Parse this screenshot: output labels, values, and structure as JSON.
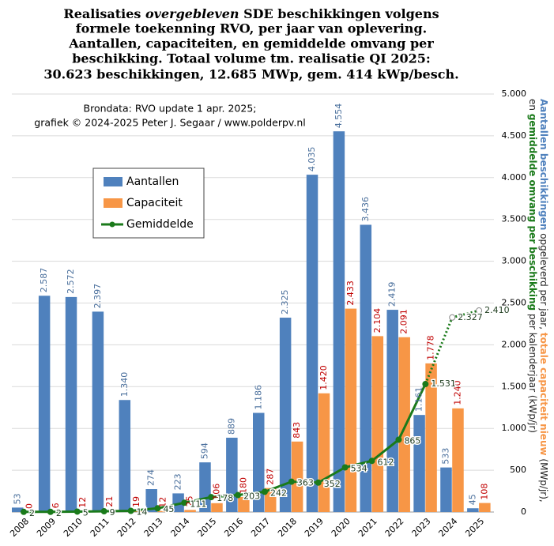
{
  "chart_data": {
    "type": "bar",
    "title": [
      [
        "Realisaties ",
        "overgebleven",
        " SDE beschikkingen  volgens"
      ],
      "formele toekenning RVO, per jaar van oplevering.",
      "Aantallen, capaciteiten, en gemiddelde omvang per",
      "beschikking.  Totaal volume tm. realisatie QI 2025:",
      "30.623 beschikkingen,  12.685 MWp, gem. 414 kWp/besch."
    ],
    "source": [
      "Brondata: RVO update 1 apr. 2025;",
      "grafiek © 2024-2025 Peter J. Segaar / www.polderpv.nl"
    ],
    "y_label": [
      [
        {
          "text": "Aantallen beschikkingen",
          "color": "#4f81bd"
        },
        {
          "text": " opgeleverd per jaar, ",
          "color": "#222222"
        },
        {
          "text": "totale capaciteit nieuw",
          "color": "#f79646"
        },
        {
          "text": " (MWp/jr),",
          "color": "#222222"
        }
      ],
      [
        {
          "text": "en ",
          "color": "#222222"
        },
        {
          "text": "gemiddelde omvang per beschikking",
          "color": "#1a7a1a"
        },
        {
          "text": " per kalenderjaar (kWp/jr)",
          "color": "#222222"
        }
      ]
    ],
    "categories": [
      "2008",
      "2009",
      "2010",
      "2011",
      "2012",
      "2013",
      "2014",
      "2015",
      "2016",
      "2017",
      "2018",
      "2019",
      "2020",
      "2021",
      "2022",
      "2023",
      "2024",
      "2025"
    ],
    "series": [
      {
        "name": "Aantallen",
        "type": "bar",
        "color": "#4f81bd",
        "label_color": "#4a6f9c",
        "values": [
          53,
          2587,
          2572,
          2397,
          1340,
          274,
          223,
          594,
          889,
          1186,
          2325,
          4035,
          4554,
          3436,
          2419,
          1161,
          533,
          45
        ],
        "value_labels": [
          "53",
          "2.587",
          "2.572",
          "2.397",
          "1.340",
          "274",
          "223",
          "594",
          "889",
          "1.186",
          "2.325",
          "4.035",
          "4.554",
          "3.436",
          "2.419",
          "1.161",
          "533",
          "45"
        ]
      },
      {
        "name": "Capaciteit",
        "type": "bar",
        "color": "#f79646",
        "label_color": "#c00000",
        "values": [
          0,
          6,
          12,
          21,
          19,
          12,
          25,
          106,
          180,
          287,
          843,
          1420,
          2433,
          2104,
          2091,
          1778,
          1240,
          108
        ],
        "value_labels": [
          "0",
          "6",
          "12",
          "21",
          "19",
          "12",
          "25",
          "106",
          "180",
          "287",
          "843",
          "1.420",
          "2.433",
          "2.104",
          "2.091",
          "1.778",
          "1.240",
          "108"
        ]
      },
      {
        "name": "Gemiddelde",
        "type": "line",
        "color": "#1a7a1a",
        "label_color": "#1f3d1f",
        "dotted_from": 15,
        "values": [
          2,
          2,
          5,
          9,
          14,
          45,
          111,
          178,
          203,
          242,
          363,
          352,
          534,
          612,
          865,
          1531,
          2327,
          2410
        ],
        "value_labels": [
          "2",
          "2",
          "5",
          "9",
          "14",
          "45",
          "111",
          "178",
          "203",
          "242",
          "363",
          "352",
          "534",
          "612",
          "865",
          "1.531",
          "2.327",
          "2.410"
        ]
      }
    ],
    "ylim": [
      0,
      5000
    ],
    "yticks": [
      0,
      500,
      {
        "value": 1000,
        "label": "1.000"
      },
      {
        "value": 1500,
        "label": "1.500"
      },
      {
        "value": 2000,
        "label": "2.000"
      },
      {
        "value": 2500,
        "label": "2.500"
      },
      {
        "value": 3000,
        "label": "3.000"
      },
      {
        "value": 3500,
        "label": "3.500"
      },
      {
        "value": 4000,
        "label": "4.000"
      },
      {
        "value": 4500,
        "label": "4.500"
      },
      {
        "value": 5000,
        "label": "5.000"
      }
    ],
    "grid": true
  }
}
